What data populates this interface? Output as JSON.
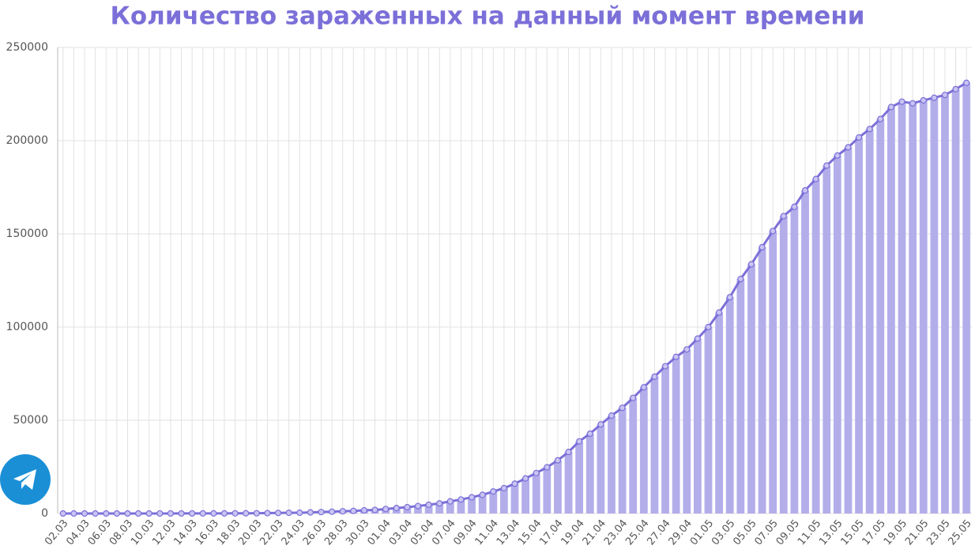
{
  "chart_data": {
    "type": "bar",
    "title": "Количество зараженных на данный момент времени",
    "categories": [
      "02.03",
      null,
      "04.03",
      null,
      "06.03",
      null,
      "08.03",
      null,
      "10.03",
      null,
      "12.03",
      null,
      "14.03",
      null,
      "16.03",
      null,
      "18.03",
      null,
      "20.03",
      null,
      "22.03",
      null,
      "24.03",
      null,
      "26.03",
      null,
      "28.03",
      null,
      "30.03",
      null,
      "01.04",
      null,
      "03.04",
      null,
      "05.04",
      null,
      "07.04",
      null,
      "09.04",
      null,
      "11.04",
      null,
      "13.04",
      null,
      "15.04",
      null,
      "17.04",
      null,
      "19.04",
      null,
      "21.04",
      null,
      "23.04",
      null,
      "25.04",
      null,
      "27.04",
      null,
      "29.04",
      null,
      "01.05",
      null,
      "03.05",
      null,
      "05.05",
      null,
      "07.05",
      null,
      "09.05",
      null,
      "11.05",
      null,
      "13.05",
      null,
      "15.05",
      null,
      "17.05",
      null,
      "19.05",
      null,
      "21.05",
      null,
      "23.05",
      null,
      "25.05"
    ],
    "values": [
      3,
      3,
      3,
      4,
      4,
      4,
      5,
      7,
      10,
      17,
      20,
      27,
      33,
      40,
      52,
      61,
      90,
      110,
      140,
      190,
      300,
      360,
      430,
      580,
      770,
      990,
      1200,
      1400,
      1700,
      1900,
      2400,
      2900,
      3400,
      4000,
      4700,
      5400,
      6500,
      7500,
      8700,
      10000,
      11800,
      13600,
      16000,
      18800,
      21700,
      24800,
      28500,
      33000,
      38700,
      42800,
      47800,
      52500,
      56700,
      62000,
      67700,
      73400,
      79000,
      84000,
      88000,
      93800,
      100000,
      107800,
      116000,
      125800,
      133700,
      142800,
      151500,
      159500,
      164500,
      173300,
      179400,
      186600,
      192000,
      196400,
      201700,
      206200,
      211600,
      218000,
      220900,
      220000,
      221600,
      223000,
      224500,
      227600,
      231000
    ],
    "color": "#b3aeea",
    "line_color": "#7c6fd8",
    "ylim": [
      0,
      250000
    ],
    "yticks": [
      0,
      50000,
      100000,
      150000,
      200000,
      250000
    ],
    "grid": true
  }
}
